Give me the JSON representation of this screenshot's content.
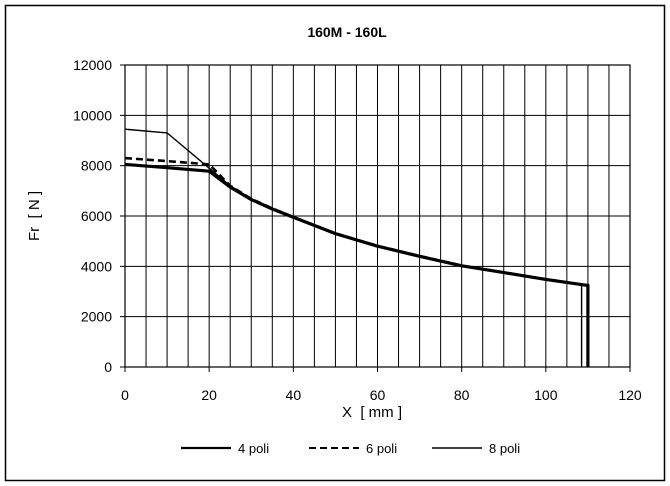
{
  "chart_data": {
    "type": "line",
    "title": "160M - 160L",
    "xlabel": "X  [ mm ]",
    "ylabel": "Fr  [ N ]",
    "xlim": [
      0,
      120
    ],
    "ylim": [
      0,
      12000
    ],
    "x_ticks": [
      0,
      20,
      40,
      60,
      80,
      100,
      120
    ],
    "y_ticks": [
      0,
      2000,
      4000,
      6000,
      8000,
      10000,
      12000
    ],
    "grid": true,
    "minor_x_grid_step": 5,
    "legend_position": "bottom",
    "series": [
      {
        "name": "4 poli",
        "style": "solid-thick",
        "x": [
          0,
          10,
          20,
          25,
          30,
          35,
          40,
          50,
          60,
          70,
          80,
          90,
          100,
          109.5,
          110,
          110
        ],
        "y": [
          8050,
          7920,
          7780,
          7150,
          6650,
          6280,
          5950,
          5300,
          4800,
          4400,
          4020,
          3750,
          3480,
          3250,
          3250,
          0
        ]
      },
      {
        "name": "6 poli",
        "style": "dashed",
        "x": [
          0,
          10,
          20,
          25,
          30,
          35,
          40,
          50,
          60,
          70,
          80,
          90,
          100,
          109.5,
          110,
          110
        ],
        "y": [
          8300,
          8180,
          8050,
          7200,
          6680,
          6300,
          5960,
          5310,
          4810,
          4410,
          4030,
          3760,
          3490,
          3260,
          3260,
          0
        ]
      },
      {
        "name": "8 poli",
        "style": "solid-thin",
        "x": [
          0,
          10,
          20,
          25,
          30,
          35,
          40,
          50,
          60,
          70,
          80,
          90,
          100,
          108.5,
          108.5
        ],
        "y": [
          9450,
          9300,
          7900,
          7200,
          6680,
          6300,
          5960,
          5310,
          4810,
          4410,
          4030,
          3760,
          3490,
          3260,
          0
        ]
      }
    ]
  }
}
